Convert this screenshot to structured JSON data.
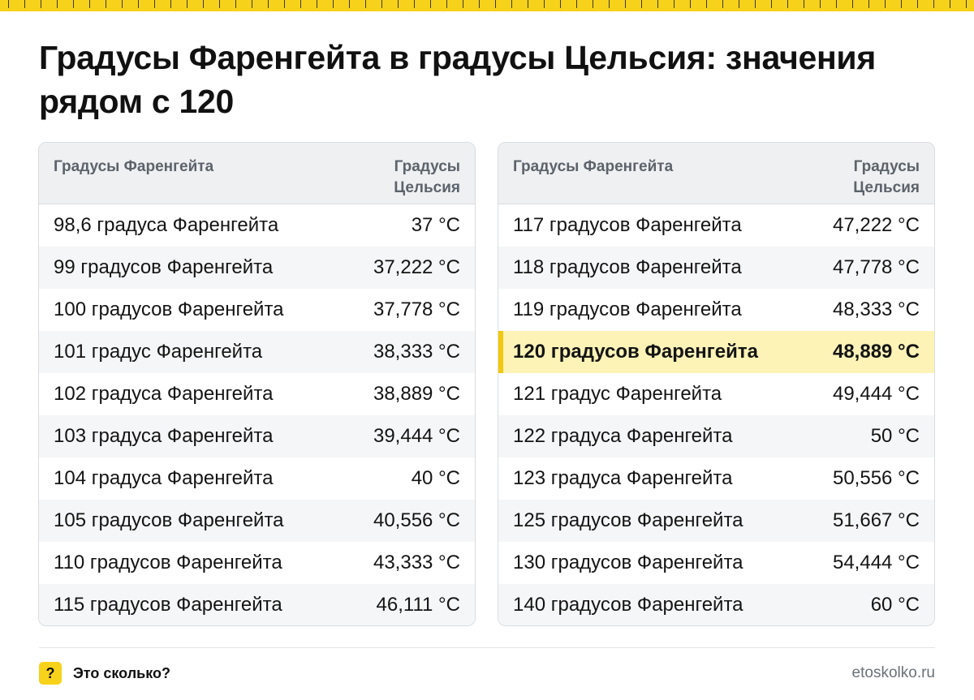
{
  "title": "Градусы Фаренгейта в градусы Цельсия: значения рядом с 120",
  "colors": {
    "accent": "#f7d21a",
    "highlight_row": "#fdf3b7"
  },
  "left_table": {
    "header_fahrenheit": "Градусы Фаренгейта",
    "header_celsius": "Градусы Цельсия",
    "rows": [
      {
        "f": "98,6 градуса Фаренгейта",
        "c": "37 °C"
      },
      {
        "f": "99 градусов Фаренгейта",
        "c": "37,222 °C"
      },
      {
        "f": "100 градусов Фаренгейта",
        "c": "37,778 °C"
      },
      {
        "f": "101 градус Фаренгейта",
        "c": "38,333 °C"
      },
      {
        "f": "102 градуса Фаренгейта",
        "c": "38,889 °C"
      },
      {
        "f": "103 градуса Фаренгейта",
        "c": "39,444 °C"
      },
      {
        "f": "104 градуса Фаренгейта",
        "c": "40 °C"
      },
      {
        "f": "105 градусов Фаренгейта",
        "c": "40,556 °C"
      },
      {
        "f": "110 градусов Фаренгейта",
        "c": "43,333 °C"
      },
      {
        "f": "115 градусов Фаренгейта",
        "c": "46,111 °C"
      }
    ]
  },
  "right_table": {
    "header_fahrenheit": "Градусы Фаренгейта",
    "header_celsius": "Градусы Цельсия",
    "rows": [
      {
        "f": "117 градусов Фаренгейта",
        "c": "47,222 °C"
      },
      {
        "f": "118 градусов Фаренгейта",
        "c": "47,778 °C"
      },
      {
        "f": "119 градусов Фаренгейта",
        "c": "48,333 °C"
      },
      {
        "f": "120 градусов Фаренгейта",
        "c": "48,889 °C",
        "highlight": true
      },
      {
        "f": "121 градус Фаренгейта",
        "c": "49,444 °C"
      },
      {
        "f": "122 градуса Фаренгейта",
        "c": "50 °C"
      },
      {
        "f": "123 градуса Фаренгейта",
        "c": "50,556 °C"
      },
      {
        "f": "125 градусов Фаренгейта",
        "c": "51,667 °C"
      },
      {
        "f": "130 градусов Фаренгейта",
        "c": "54,444 °C"
      },
      {
        "f": "140 градусов Фаренгейта",
        "c": "60 °C"
      }
    ]
  },
  "footer": {
    "badge_symbol": "?",
    "brand": "Это сколько?",
    "site": "etoskolko.ru"
  }
}
